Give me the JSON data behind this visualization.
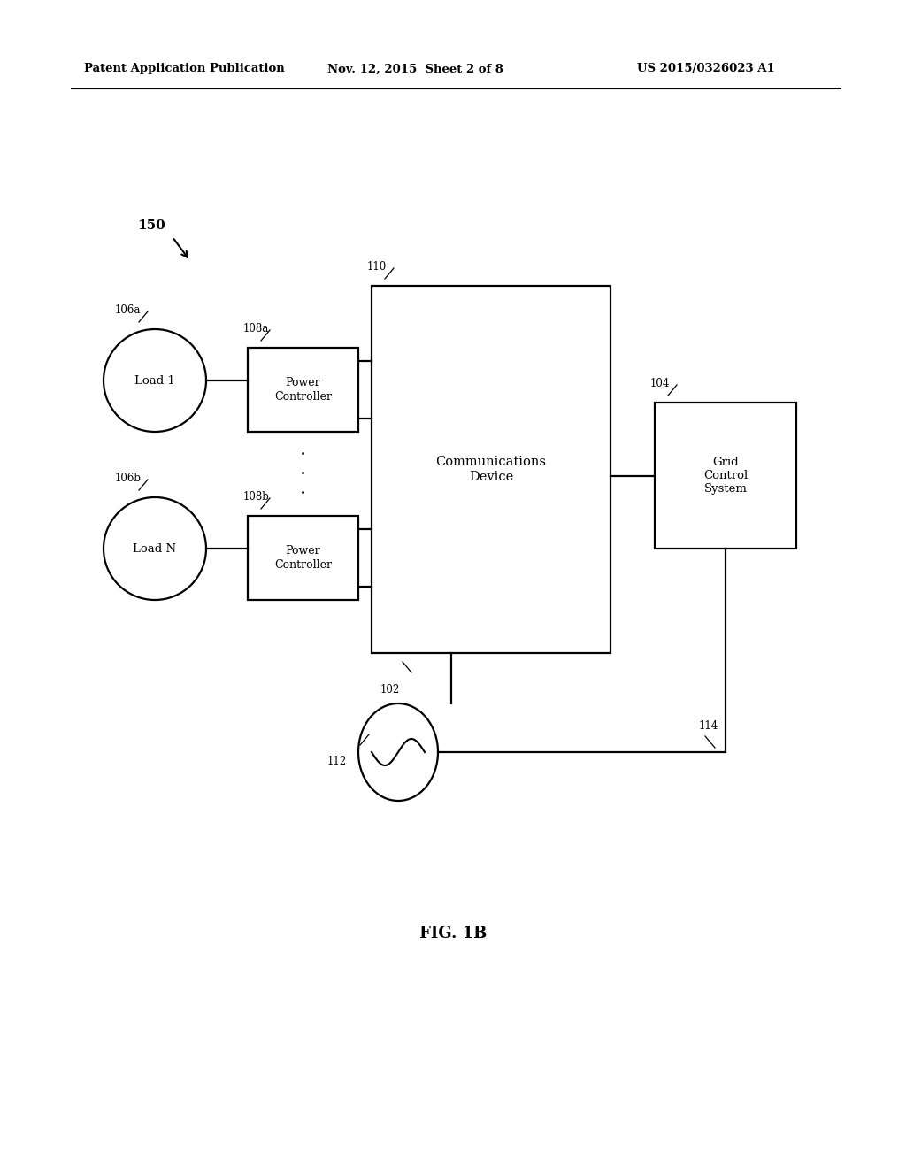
{
  "bg_color": "#ffffff",
  "header_left": "Patent Application Publication",
  "header_mid": "Nov. 12, 2015  Sheet 2 of 8",
  "header_right": "US 2015/0326023 A1",
  "fig_label": "FIG. 1B",
  "label_150": "150",
  "label_106a": "106a",
  "label_106b": "106b",
  "label_108a": "108a",
  "label_108b": "108b",
  "label_110": "110",
  "label_102": "102",
  "label_104": "104",
  "label_112": "112",
  "label_114": "114",
  "text_load1": "Load 1",
  "text_loadN": "Load N",
  "text_power_ctrl": "Power\nController",
  "text_comm_device": "Communications\nDevice",
  "text_grid": "Grid\nControl\nSystem",
  "lw": 1.6
}
